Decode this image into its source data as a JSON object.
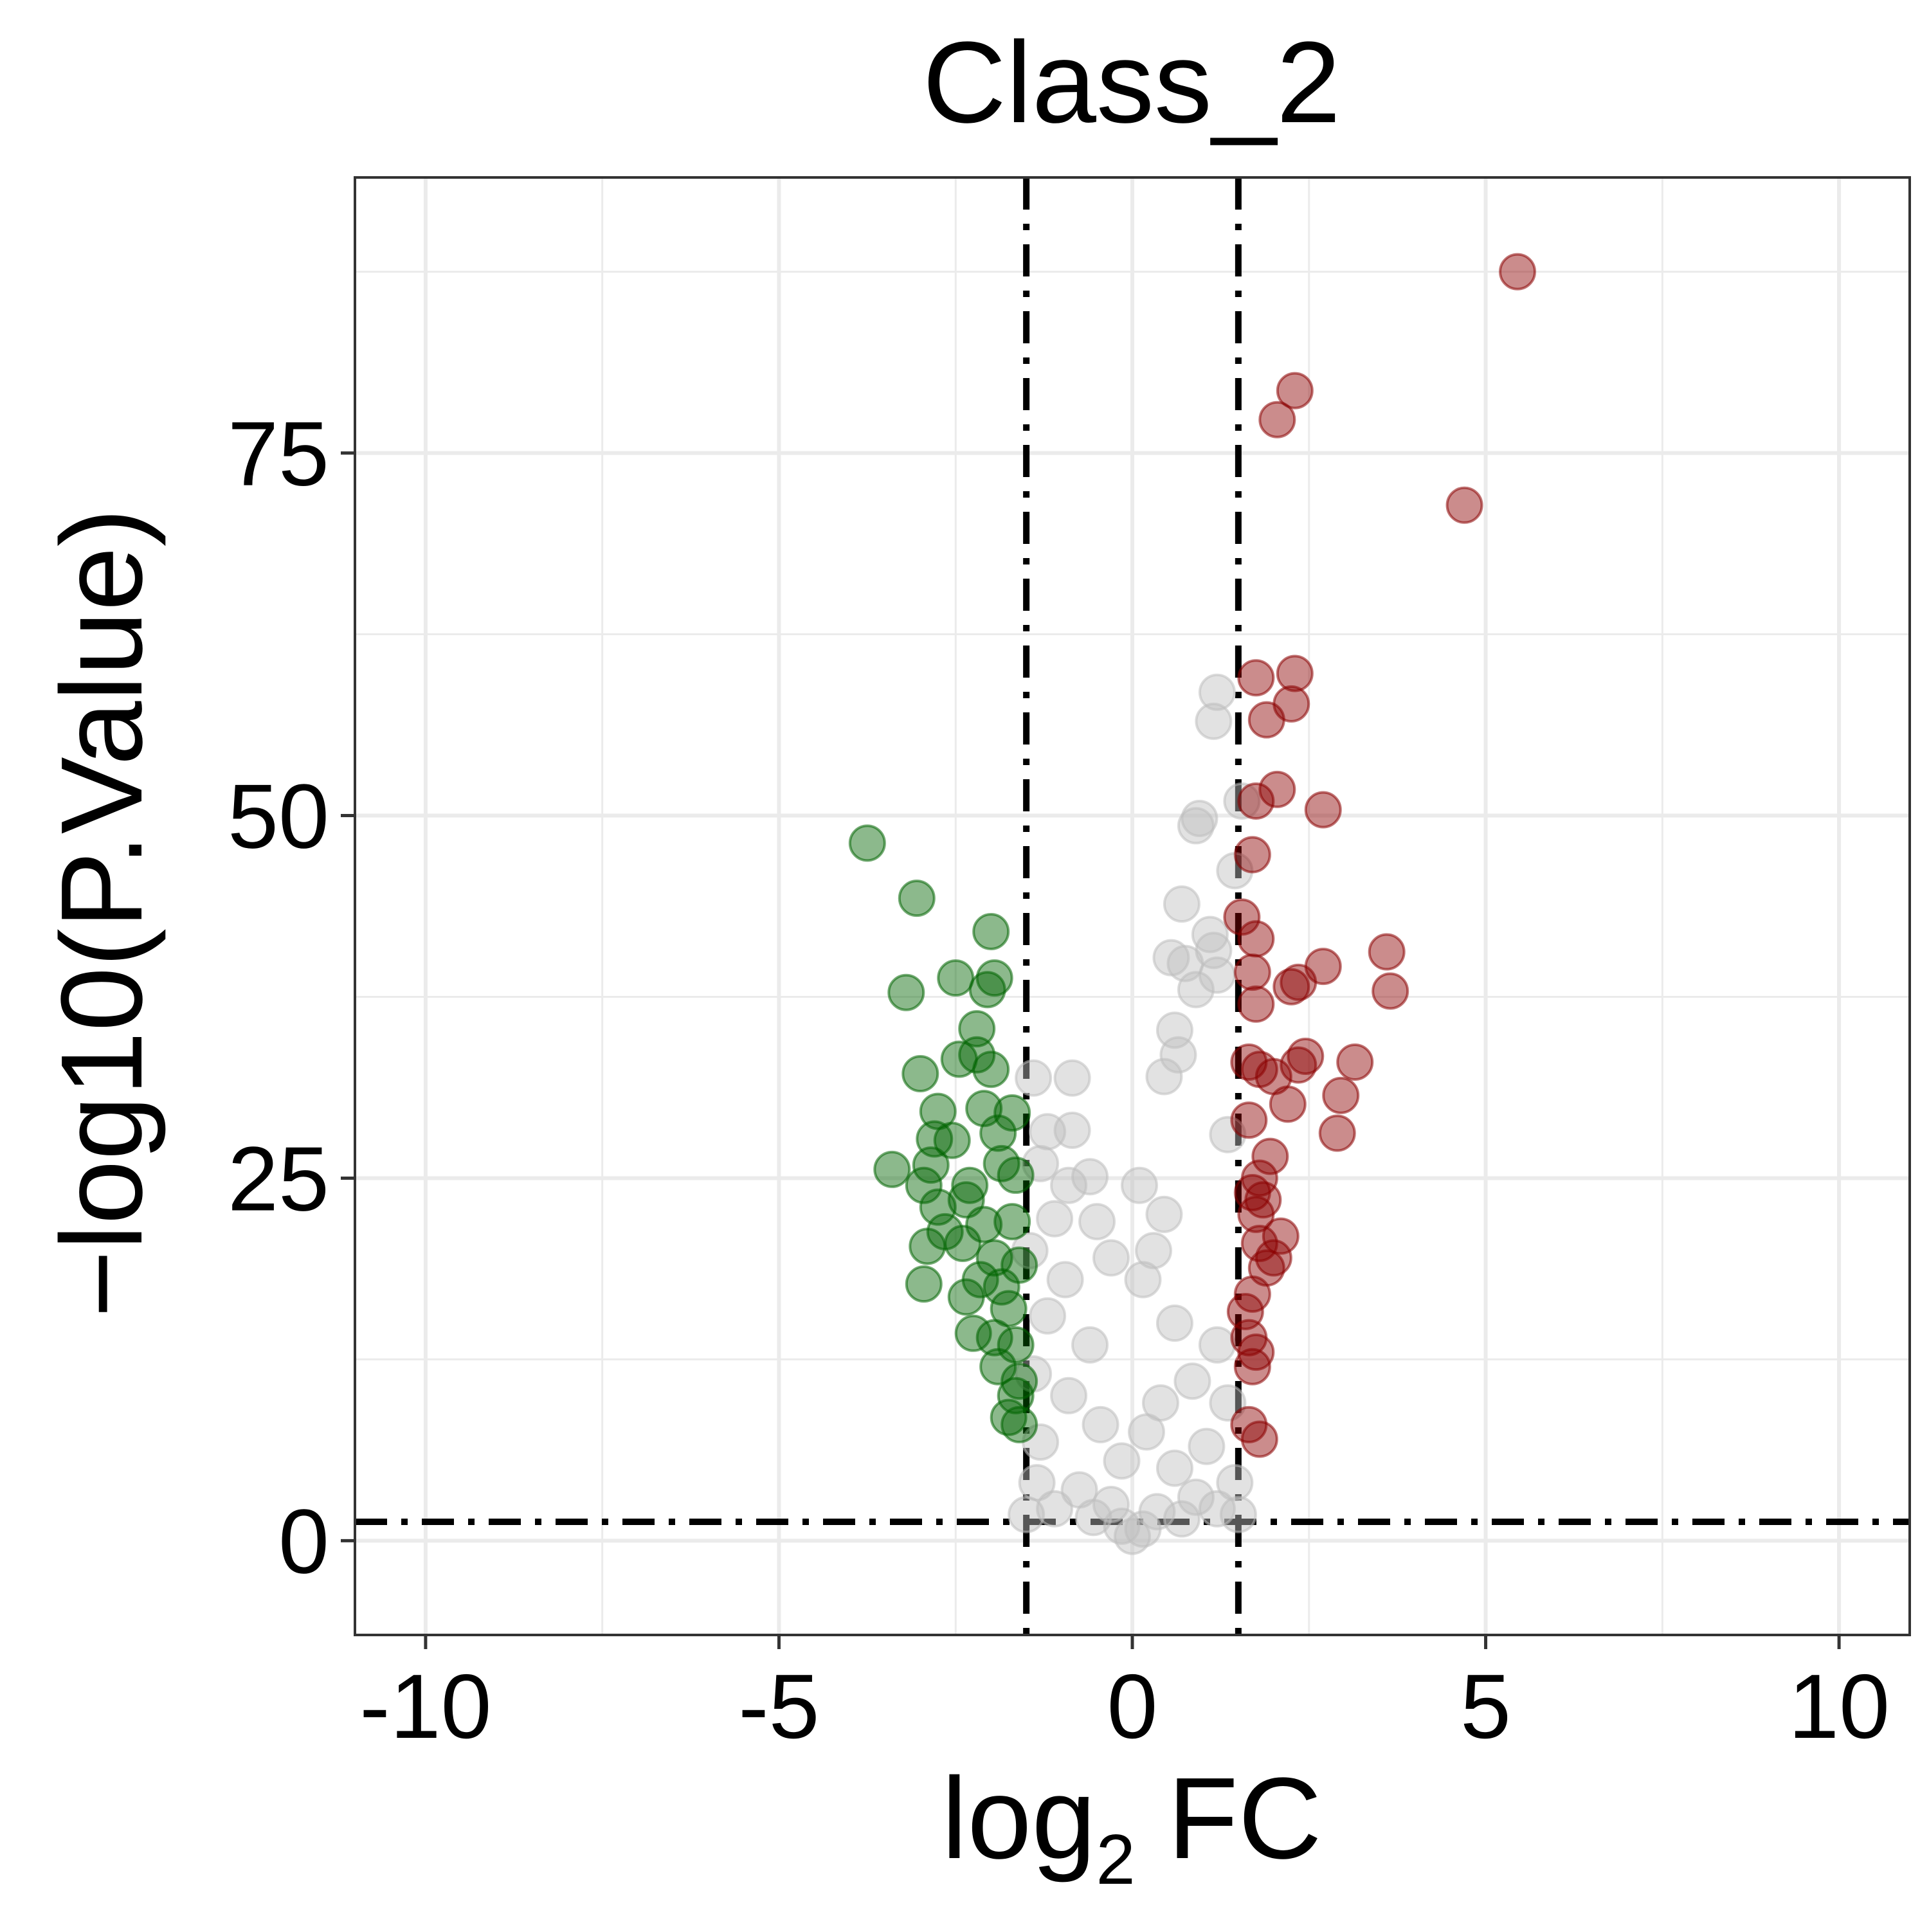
{
  "chart_data": {
    "type": "scatter",
    "title": "Class_2",
    "xlabel": {
      "prefix": "log",
      "subscript": "2",
      "suffix": " FC"
    },
    "ylabel": "−log10(P.Value)",
    "xlim": [
      -11,
      11
    ],
    "ylim": [
      -6.5,
      94
    ],
    "x_ticks": [
      -10,
      -5,
      0,
      5,
      10
    ],
    "x_tick_labels": [
      "-10",
      "-5",
      "0",
      "5",
      "10"
    ],
    "y_ticks": [
      0,
      25,
      50,
      75
    ],
    "y_tick_labels": [
      "0",
      "25",
      "50",
      "75"
    ],
    "grid": true,
    "legend": "none",
    "thresholds": {
      "fc_lines": [
        -1.5,
        1.5
      ],
      "p_line": 1.3
    },
    "colors": {
      "up": "#8B0000",
      "down": "#006400",
      "not_significant": "#BEBEBE",
      "grid": "#EBEBEB",
      "panel_border": "#333333",
      "threshold_line": "#000000"
    },
    "series": [
      {
        "group": "up",
        "points": [
          [
            5.45,
            87.5
          ],
          [
            2.3,
            79.3
          ],
          [
            2.05,
            77.3
          ],
          [
            4.7,
            71.4
          ],
          [
            2.3,
            59.8
          ],
          [
            1.75,
            59.5
          ],
          [
            2.25,
            57.7
          ],
          [
            1.9,
            56.6
          ],
          [
            2.05,
            51.8
          ],
          [
            1.75,
            51.0
          ],
          [
            2.7,
            50.4
          ],
          [
            1.7,
            47.3
          ],
          [
            1.55,
            43.0
          ],
          [
            1.75,
            41.5
          ],
          [
            2.7,
            39.6
          ],
          [
            3.6,
            40.6
          ],
          [
            3.65,
            37.9
          ],
          [
            2.25,
            38.2
          ],
          [
            2.35,
            38.5
          ],
          [
            1.7,
            39.2
          ],
          [
            1.75,
            37.0
          ],
          [
            1.65,
            33.0
          ],
          [
            1.8,
            32.5
          ],
          [
            2.0,
            32.0
          ],
          [
            2.35,
            32.8
          ],
          [
            2.45,
            33.4
          ],
          [
            3.15,
            33.0
          ],
          [
            2.95,
            30.7
          ],
          [
            2.2,
            30.1
          ],
          [
            2.9,
            28.1
          ],
          [
            1.65,
            29.0
          ],
          [
            1.95,
            26.5
          ],
          [
            1.8,
            25.0
          ],
          [
            1.7,
            24.0
          ],
          [
            1.85,
            23.5
          ],
          [
            1.75,
            22.5
          ],
          [
            2.1,
            21.0
          ],
          [
            1.8,
            20.5
          ],
          [
            2.0,
            19.5
          ],
          [
            1.9,
            18.8
          ],
          [
            1.7,
            17.0
          ],
          [
            1.6,
            15.8
          ],
          [
            1.65,
            14.0
          ],
          [
            1.75,
            13.0
          ],
          [
            1.7,
            12.0
          ],
          [
            1.65,
            8.0
          ],
          [
            1.8,
            7.0
          ]
        ]
      },
      {
        "group": "down",
        "points": [
          [
            -3.75,
            48.1
          ],
          [
            -3.05,
            44.3
          ],
          [
            -2.0,
            42.0
          ],
          [
            -2.5,
            38.8
          ],
          [
            -1.95,
            38.8
          ],
          [
            -2.05,
            38.0
          ],
          [
            -3.2,
            37.8
          ],
          [
            -2.2,
            35.3
          ],
          [
            -2.2,
            33.5
          ],
          [
            -2.45,
            33.2
          ],
          [
            -2.0,
            32.5
          ],
          [
            -3.0,
            32.2
          ],
          [
            -2.75,
            29.6
          ],
          [
            -2.1,
            29.8
          ],
          [
            -1.7,
            29.5
          ],
          [
            -2.8,
            27.7
          ],
          [
            -2.55,
            27.6
          ],
          [
            -1.9,
            28.1
          ],
          [
            -2.85,
            25.9
          ],
          [
            -3.4,
            25.6
          ],
          [
            -2.3,
            24.5
          ],
          [
            -1.85,
            26.0
          ],
          [
            -2.95,
            24.5
          ],
          [
            -2.75,
            23.0
          ],
          [
            -2.35,
            23.5
          ],
          [
            -1.65,
            25.2
          ],
          [
            -2.65,
            21.3
          ],
          [
            -2.1,
            21.8
          ],
          [
            -1.7,
            22.0
          ],
          [
            -2.9,
            20.3
          ],
          [
            -2.4,
            20.5
          ],
          [
            -1.95,
            19.5
          ],
          [
            -2.95,
            17.7
          ],
          [
            -2.15,
            18.0
          ],
          [
            -1.85,
            17.5
          ],
          [
            -1.6,
            19.0
          ],
          [
            -2.35,
            16.8
          ],
          [
            -1.75,
            16.0
          ],
          [
            -2.25,
            14.3
          ],
          [
            -1.95,
            14.0
          ],
          [
            -1.65,
            13.5
          ],
          [
            -1.9,
            12.0
          ],
          [
            -1.6,
            11.0
          ],
          [
            -1.75,
            8.5
          ],
          [
            -1.6,
            8.0
          ],
          [
            -1.65,
            10.0
          ]
        ]
      },
      {
        "group": "not_significant",
        "points": [
          [
            1.2,
            58.5
          ],
          [
            1.15,
            56.5
          ],
          [
            1.55,
            51.0
          ],
          [
            0.95,
            49.8
          ],
          [
            0.9,
            49.3
          ],
          [
            1.45,
            46.2
          ],
          [
            0.7,
            43.9
          ],
          [
            1.1,
            41.8
          ],
          [
            1.15,
            40.7
          ],
          [
            0.55,
            40.2
          ],
          [
            0.75,
            39.8
          ],
          [
            1.2,
            39.0
          ],
          [
            0.9,
            38.0
          ],
          [
            0.6,
            35.2
          ],
          [
            0.65,
            33.5
          ],
          [
            -1.4,
            31.9
          ],
          [
            -0.85,
            31.9
          ],
          [
            0.45,
            32.0
          ],
          [
            -0.85,
            28.3
          ],
          [
            -1.2,
            28.2
          ],
          [
            1.35,
            28.0
          ],
          [
            -0.6,
            25.1
          ],
          [
            -0.9,
            24.5
          ],
          [
            -1.3,
            26.0
          ],
          [
            0.1,
            24.5
          ],
          [
            0.45,
            22.5
          ],
          [
            -0.5,
            22.0
          ],
          [
            -1.1,
            22.2
          ],
          [
            0.3,
            20.0
          ],
          [
            -0.3,
            19.5
          ],
          [
            -1.45,
            20.0
          ],
          [
            -0.95,
            18.0
          ],
          [
            0.15,
            18.0
          ],
          [
            -1.2,
            15.5
          ],
          [
            0.6,
            15.0
          ],
          [
            -0.6,
            13.5
          ],
          [
            1.2,
            13.5
          ],
          [
            -1.4,
            11.5
          ],
          [
            0.85,
            11.0
          ],
          [
            -0.9,
            10.0
          ],
          [
            0.4,
            9.5
          ],
          [
            1.35,
            9.5
          ],
          [
            -0.45,
            8.0
          ],
          [
            0.2,
            7.5
          ],
          [
            -1.3,
            6.8
          ],
          [
            1.05,
            6.5
          ],
          [
            -0.15,
            5.5
          ],
          [
            0.6,
            5.0
          ],
          [
            -1.35,
            4.0
          ],
          [
            1.45,
            4.0
          ],
          [
            -0.75,
            3.5
          ],
          [
            0.9,
            3.0
          ],
          [
            -0.3,
            2.5
          ],
          [
            0.35,
            2.0
          ],
          [
            -1.1,
            2.2
          ],
          [
            1.2,
            2.2
          ],
          [
            -0.55,
            1.6
          ],
          [
            0.7,
            1.5
          ],
          [
            -0.15,
            1.0
          ],
          [
            0.15,
            0.8
          ],
          [
            0.0,
            0.3
          ],
          [
            -1.5,
            1.8
          ],
          [
            1.5,
            1.8
          ]
        ]
      }
    ]
  }
}
